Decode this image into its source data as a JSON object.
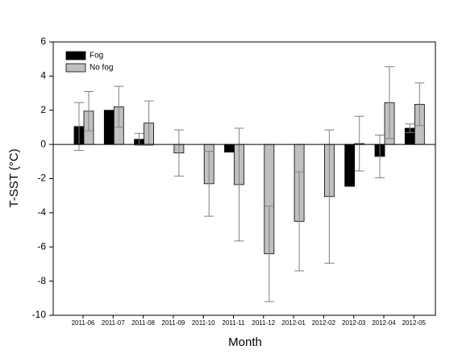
{
  "chart_data": {
    "type": "bar",
    "x_label": "Month",
    "y_label": "T-SST (°C)",
    "categories": [
      "2011-06",
      "2011-07",
      "2011-08",
      "2011-09",
      "2011-10",
      "2011-11",
      "2011-12",
      "2012-01",
      "2012-02",
      "2012-03",
      "2012-04",
      "2012-05"
    ],
    "series": [
      {
        "name": "Fog",
        "color": "#000000",
        "values": [
          1.05,
          2.0,
          0.3,
          null,
          null,
          -0.45,
          null,
          null,
          null,
          -2.45,
          -0.7,
          0.95
        ],
        "errors": [
          1.4,
          null,
          0.35,
          null,
          null,
          null,
          null,
          null,
          null,
          null,
          1.25,
          0.25
        ]
      },
      {
        "name": "No fog",
        "color": "#c0c0c0",
        "values": [
          1.95,
          2.2,
          1.25,
          -0.5,
          -2.3,
          -2.35,
          -6.4,
          -4.5,
          -3.05,
          0.05,
          2.45,
          2.35
        ],
        "errors": [
          1.15,
          1.2,
          1.3,
          1.35,
          1.9,
          3.3,
          2.8,
          2.9,
          3.9,
          1.6,
          2.1,
          1.25
        ]
      }
    ],
    "ylim": [
      -10,
      6
    ],
    "yticks": [
      -10,
      -8,
      -6,
      -4,
      -2,
      0,
      2,
      4,
      6
    ]
  }
}
